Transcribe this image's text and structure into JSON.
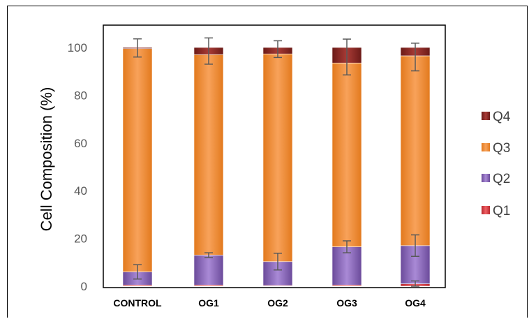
{
  "chart_data": {
    "type": "bar",
    "stacked": true,
    "title": "",
    "xlabel": "",
    "ylabel": "Cell Composition (%)",
    "ylim": [
      0,
      100
    ],
    "yticks": [
      "0",
      "20",
      "40",
      "60",
      "80",
      "100"
    ],
    "categories": [
      "CONTROL",
      "OG1",
      "OG2",
      "OG3",
      "OG4"
    ],
    "series": [
      {
        "name": "Q1",
        "color": "#e0474c",
        "values": [
          0.5,
          0.5,
          0.3,
          0.5,
          1.0
        ],
        "error": [
          0,
          0,
          0,
          0,
          1.2
        ]
      },
      {
        "name": "Q2",
        "color": "#8e6bbf",
        "values": [
          5.5,
          12.5,
          10.0,
          16.0,
          16.0
        ],
        "error": [
          3.0,
          1.0,
          3.5,
          2.5,
          4.5
        ]
      },
      {
        "name": "Q3",
        "color": "#f5963a",
        "values": [
          93.5,
          84.0,
          87.0,
          77.0,
          79.5
        ],
        "error": [
          0,
          0,
          0,
          0,
          0
        ]
      },
      {
        "name": "Q4",
        "color": "#8b2a26",
        "values": [
          0.5,
          3.0,
          2.7,
          6.5,
          3.5
        ],
        "error": [
          0,
          0,
          0,
          0,
          0
        ]
      }
    ],
    "errorbar_tops": [
      99.8,
      98.5,
      99.3,
      96.0,
      96.0
    ],
    "errorbar_top_err": [
      3.8,
      5.5,
      3.5,
      7.5,
      5.8
    ],
    "legend_order": [
      "Q4",
      "Q3",
      "Q2",
      "Q1"
    ],
    "legend_position": "right",
    "grid": false
  }
}
